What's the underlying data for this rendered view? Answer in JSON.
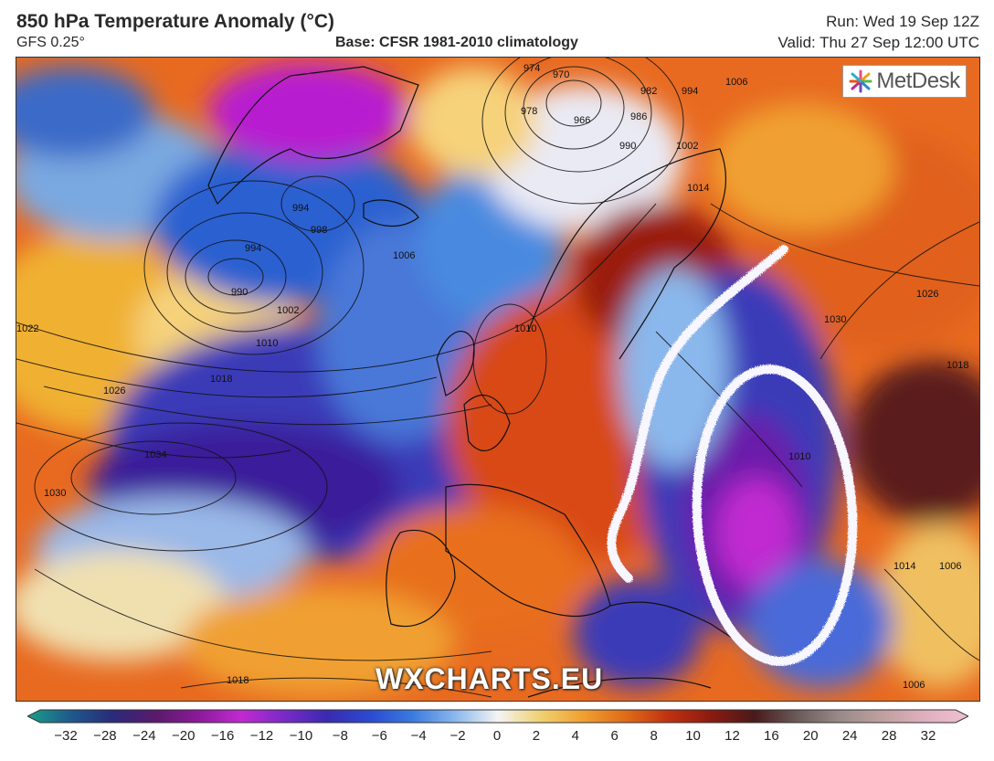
{
  "header": {
    "title": "850 hPa Temperature Anomaly (°C)",
    "model": "GFS 0.25°",
    "base": "Base: CFSR 1981-2010 climatology",
    "run": "Run: Wed 19 Sep 12Z",
    "valid": "Valid: Thu 27 Sep 12:00 UTC"
  },
  "logo": {
    "text": "MetDesk",
    "icon": "sparkle-logo-icon"
  },
  "watermark": "WXCHARTS.EU",
  "isobar_labels": [
    "974",
    "970",
    "966",
    "978",
    "982",
    "986",
    "990",
    "994",
    "1002",
    "1006",
    "1014",
    "1010",
    "1030",
    "1026",
    "1018",
    "994",
    "998",
    "994",
    "990",
    "1002",
    "1010",
    "1018",
    "1026",
    "1022",
    "1034",
    "1030",
    "1018",
    "1006",
    "1010",
    "1006",
    "1018",
    "1014"
  ],
  "colorbar": {
    "ticks": [
      "−32",
      "−28",
      "−24",
      "−20",
      "−16",
      "−12",
      "−10",
      "−8",
      "−6",
      "−4",
      "−2",
      "0",
      "2",
      "4",
      "6",
      "8",
      "10",
      "12",
      "16",
      "20",
      "24",
      "28",
      "32"
    ],
    "colors": [
      "#1aa088",
      "#1e5a8c",
      "#2a2a7a",
      "#5a1a6a",
      "#8c1a9a",
      "#c02ad0",
      "#7a2ac8",
      "#3a2ab0",
      "#2a4ad0",
      "#3a7ae0",
      "#8ab8ec",
      "#f4f4f4",
      "#f0d070",
      "#f0a030",
      "#e06a18",
      "#c03010",
      "#8a1a10",
      "#4a1a1a",
      "#6a5a5a",
      "#9a8a8a",
      "#c0a0a0",
      "#e0b0c0",
      "#f0c0d0"
    ]
  },
  "colors": {
    "warm": "#d8501a",
    "hot": "#8a1a10",
    "cold": "#3a2ab0",
    "very_cold": "#b81ad0",
    "neutral": "#f4f4f4"
  }
}
